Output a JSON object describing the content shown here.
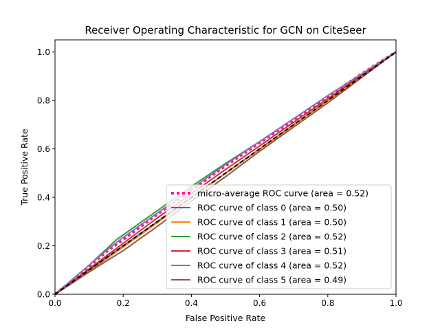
{
  "chart_data": {
    "type": "line",
    "title": "Receiver Operating Characteristic for GCN on CiteSeer",
    "xlabel": "False Positive Rate",
    "ylabel": "True Positive Rate",
    "xlim": [
      0.0,
      1.0
    ],
    "ylim": [
      0.0,
      1.05
    ],
    "xticks": [
      "0.0",
      "0.2",
      "0.4",
      "0.6",
      "0.8",
      "1.0"
    ],
    "yticks": [
      "0.0",
      "0.2",
      "0.4",
      "0.6",
      "0.8",
      "1.0"
    ],
    "grid": false,
    "legend_position": "lower-right",
    "reference_line": {
      "x": [
        0,
        1
      ],
      "y": [
        0,
        1
      ],
      "color": "#000000",
      "style": "dashed"
    },
    "series": [
      {
        "name": "micro-average ROC curve (area = 0.52)",
        "color": "#ff1493",
        "style": "dotted",
        "x": [
          0.0,
          0.05,
          0.1,
          0.15,
          0.2,
          0.3,
          0.4,
          0.5,
          0.6,
          0.7,
          0.8,
          0.9,
          1.0
        ],
        "y": [
          0.0,
          0.055,
          0.115,
          0.175,
          0.225,
          0.33,
          0.43,
          0.53,
          0.625,
          0.72,
          0.815,
          0.91,
          1.0
        ]
      },
      {
        "name": "ROC curve of class 0 (area = 0.50)",
        "color": "#1f77b4",
        "style": "solid",
        "x": [
          0.0,
          0.1,
          0.2,
          0.3,
          0.4,
          0.5,
          0.6,
          0.7,
          0.8,
          0.9,
          1.0
        ],
        "y": [
          0.0,
          0.1,
          0.2,
          0.3,
          0.4,
          0.5,
          0.6,
          0.7,
          0.8,
          0.9,
          1.0
        ]
      },
      {
        "name": "ROC curve of class 1 (area = 0.50)",
        "color": "#ff7f0e",
        "style": "solid",
        "x": [
          0.0,
          0.1,
          0.2,
          0.3,
          0.4,
          0.5,
          0.6,
          0.7,
          0.8,
          0.9,
          1.0
        ],
        "y": [
          0.0,
          0.095,
          0.195,
          0.295,
          0.398,
          0.498,
          0.598,
          0.698,
          0.798,
          0.899,
          1.0
        ]
      },
      {
        "name": "ROC curve of class 2 (area = 0.52)",
        "color": "#2ca02c",
        "style": "solid",
        "x": [
          0.0,
          0.1,
          0.18,
          0.3,
          0.4,
          0.5,
          0.6,
          0.7,
          0.8,
          0.9,
          1.0
        ],
        "y": [
          0.0,
          0.12,
          0.225,
          0.345,
          0.445,
          0.54,
          0.63,
          0.725,
          0.82,
          0.91,
          1.0
        ]
      },
      {
        "name": "ROC curve of class 3 (area = 0.51)",
        "color": "#d62728",
        "style": "solid",
        "x": [
          0.0,
          0.1,
          0.2,
          0.3,
          0.4,
          0.5,
          0.6,
          0.7,
          0.8,
          0.9,
          1.0
        ],
        "y": [
          0.0,
          0.105,
          0.21,
          0.315,
          0.415,
          0.515,
          0.612,
          0.71,
          0.808,
          0.905,
          1.0
        ]
      },
      {
        "name": "ROC curve of class 4 (area = 0.52)",
        "color": "#9467bd",
        "style": "solid",
        "x": [
          0.0,
          0.05,
          0.1,
          0.15,
          0.2,
          0.3,
          0.4,
          0.5,
          0.6,
          0.7,
          0.8,
          0.9,
          1.0
        ],
        "y": [
          0.0,
          0.06,
          0.12,
          0.18,
          0.235,
          0.335,
          0.435,
          0.535,
          0.63,
          0.725,
          0.82,
          0.91,
          1.0
        ]
      },
      {
        "name": "ROC curve of class 5 (area = 0.49)",
        "color": "#8c564b",
        "style": "solid",
        "x": [
          0.0,
          0.12,
          0.2,
          0.3,
          0.4,
          0.5,
          0.6,
          0.7,
          0.8,
          0.9,
          1.0
        ],
        "y": [
          0.0,
          0.11,
          0.18,
          0.28,
          0.385,
          0.485,
          0.59,
          0.69,
          0.79,
          0.895,
          1.0
        ]
      }
    ]
  }
}
